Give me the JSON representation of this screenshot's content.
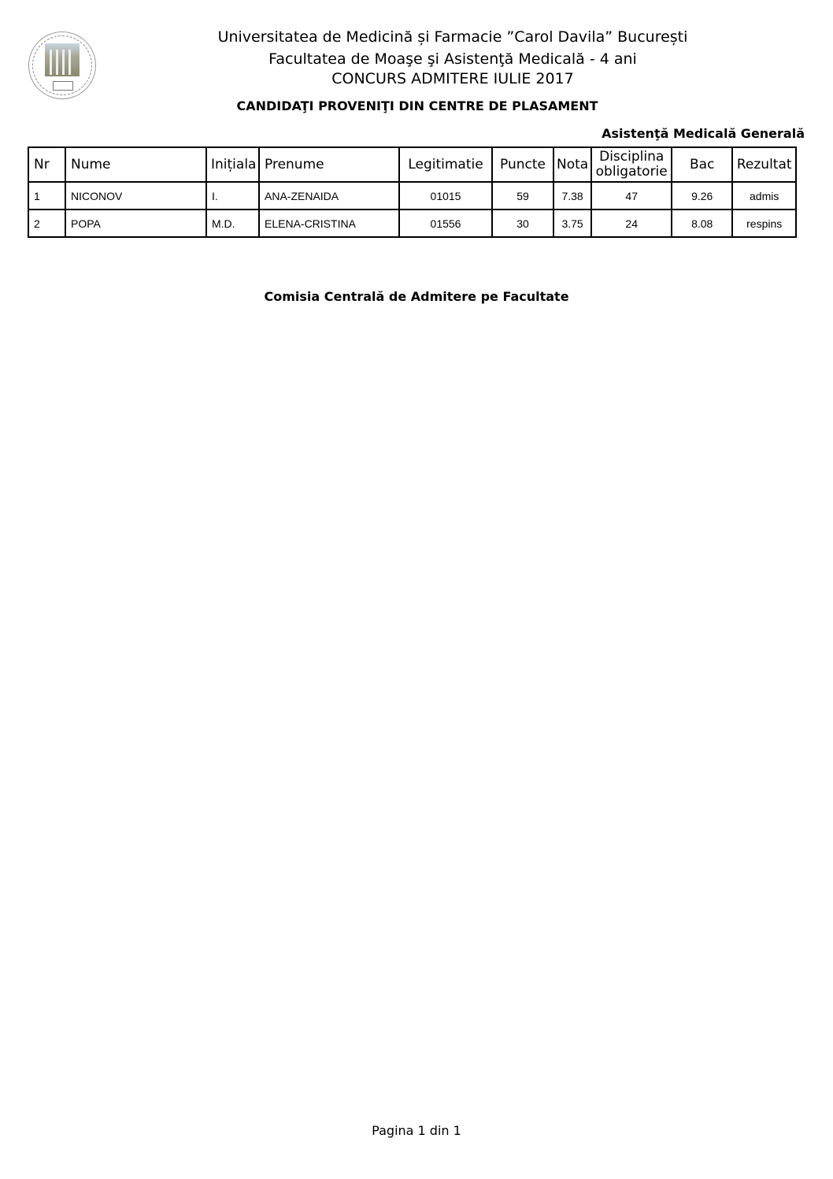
{
  "header": {
    "university": "Universitatea de Medicină și Farmacie ”Carol Davila” București",
    "faculty": "Facultatea de Moaşe şi Asistenţă Medicală - 4 ani",
    "contest": "CONCURS ADMITERE IULIE 2017",
    "category": "CANDIDAŢI PROVENIŢI DIN CENTRE DE PLASAMENT",
    "specialization": "Asistenţă Medicală Generală"
  },
  "table": {
    "columns": [
      "Nr",
      "Nume",
      "Inițiala",
      "Prenume",
      "Legitimatie",
      "Puncte",
      "Nota",
      "Disciplina obligatorie",
      "Bac",
      "Rezultat"
    ],
    "rows": [
      [
        "1",
        "NICONOV",
        "I.",
        "ANA-ZENAIDA",
        "01015",
        "59",
        "7.38",
        "47",
        "9.26",
        "admis"
      ],
      [
        "2",
        "POPA",
        "M.D.",
        "ELENA-CRISTINA",
        "01556",
        "30",
        "3.75",
        "24",
        "8.08",
        "respins"
      ]
    ]
  },
  "footer": {
    "commission": "Comisia Centrală de Admitere pe Facultate",
    "page": "Pagina 1 din 1"
  }
}
